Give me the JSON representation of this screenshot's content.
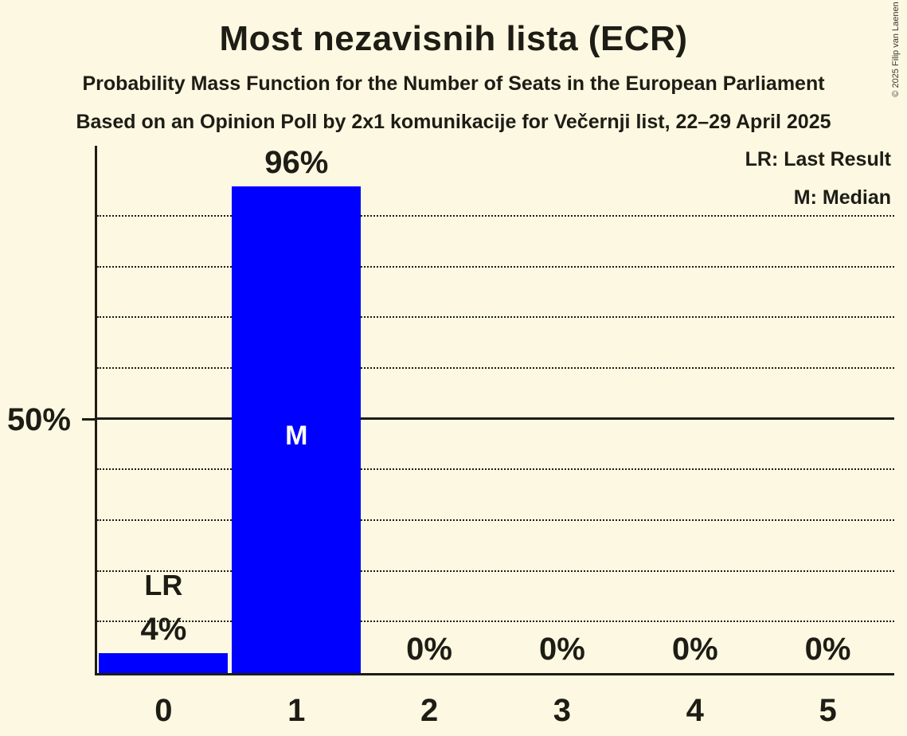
{
  "page": {
    "background_color": "#FDF8E2",
    "text_color": "#1D1D15"
  },
  "header": {
    "title": "Most nezavisnih lista (ECR)",
    "subtitle1": "Probability Mass Function for the Number of Seats in the European Parliament",
    "subtitle2": "Based on an Opinion Poll by 2x1 komunikacije for Večernji list, 22–29 April 2025"
  },
  "legend": {
    "lr": "LR: Last Result",
    "m": "M: Median"
  },
  "copyright": "© 2025 Filip van Laenen",
  "chart_data": {
    "type": "bar",
    "title": "Most nezavisnih lista (ECR)",
    "categories": [
      "0",
      "1",
      "2",
      "3",
      "4",
      "5"
    ],
    "values": [
      4,
      96,
      0,
      0,
      0,
      0
    ],
    "value_labels": [
      "4%",
      "96%",
      "0%",
      "0%",
      "0%",
      "0%"
    ],
    "bar_color": "#0000FF",
    "ylim": [
      0,
      104
    ],
    "yticks": [
      {
        "value": 50,
        "label": "50%"
      }
    ],
    "gridlines": {
      "dotted_every_pct": 10,
      "dotted_range": [
        10,
        90
      ],
      "solid_at_pct": 50
    },
    "legend_position": "top-right",
    "annotations": [
      {
        "category_index": 0,
        "label": "LR",
        "meaning": "Last Result",
        "placement": "above-bar"
      },
      {
        "category_index": 1,
        "label": "M",
        "meaning": "Median",
        "placement": "inside-bar"
      }
    ]
  }
}
